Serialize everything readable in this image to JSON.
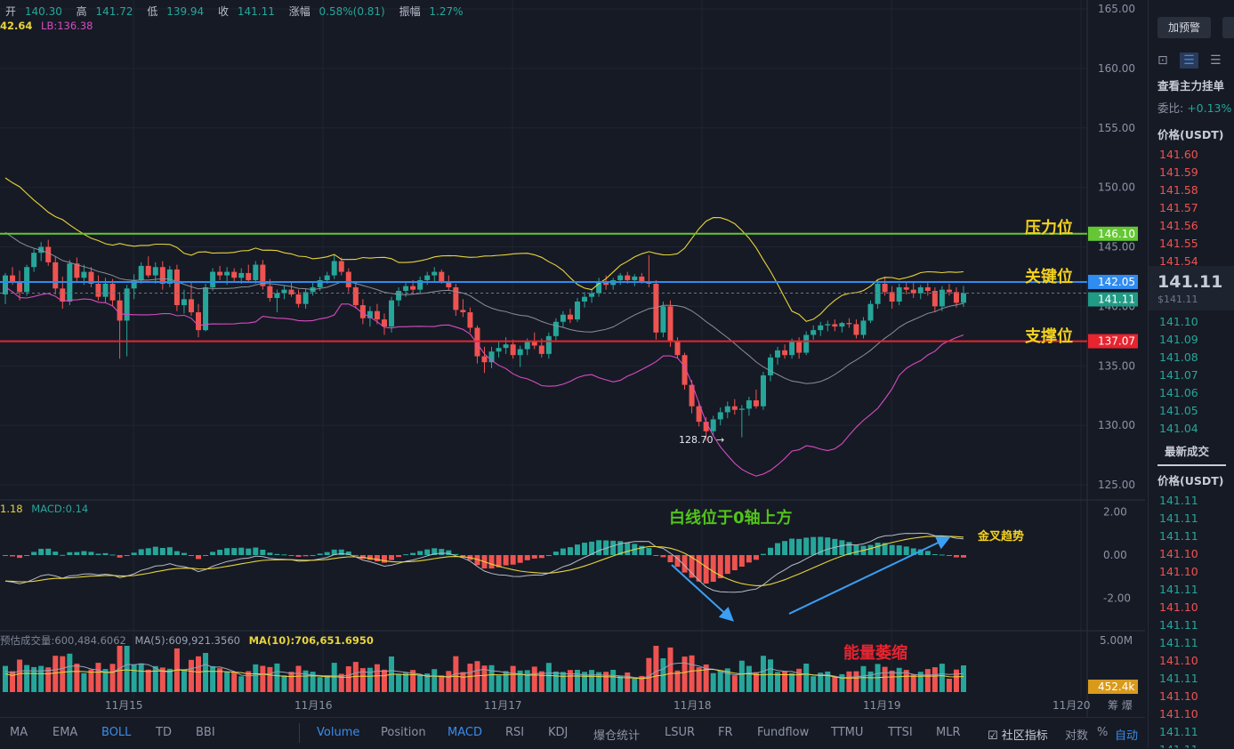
{
  "ohlc": {
    "open_label": "开",
    "open": "140.30",
    "high_label": "高",
    "high": "141.72",
    "low_label": "低",
    "low": "139.94",
    "close_label": "收",
    "close": "141.11",
    "change_label": "涨幅",
    "change": "0.58%(0.81)",
    "amplitude_label": "振幅",
    "amplitude": "1.27%"
  },
  "boll": {
    "ub": "42.64",
    "lb": "LB:136.38"
  },
  "macd_legend": {
    "dif": "1.18",
    "macd": "MACD:0.14"
  },
  "volume_legend": {
    "vol": "预估成交量:600,484.6062",
    "ma5": "MA(5):609,921.3560",
    "ma10": "MA(10):706,651.6950"
  },
  "levels": {
    "resistance": {
      "label": "压力位",
      "price": "146.10",
      "color": "#65c733"
    },
    "key": {
      "label": "关键位",
      "price": "142.05",
      "color": "#2f8cf0"
    },
    "support": {
      "label": "支撑位",
      "price": "137.07",
      "color": "#e8242f"
    }
  },
  "current_price_tag": "141.11",
  "volume_tag": "452.4k",
  "low_marker": "128.70 →",
  "annotations": {
    "macd_above_zero": "白线位于0轴上方",
    "golden_cross": "金叉趋势",
    "volume_shrink": "能量萎缩"
  },
  "colors": {
    "up": "#26a69a",
    "down": "#ef5350",
    "boll_upper": "#e8d43a",
    "boll_mid": "#8c8f9a",
    "boll_lower": "#d64cc0",
    "bg": "#161a25"
  },
  "chart_data": {
    "type": "candlestick",
    "price_axis": {
      "min": 125,
      "max": 165,
      "ticks": [
        "165.00",
        "160.00",
        "155.00",
        "150.00",
        "145.00",
        "140.00",
        "135.00",
        "130.00",
        "125.00"
      ]
    },
    "macd_axis": {
      "ticks": [
        "2.00",
        "0.00",
        "-2.00"
      ]
    },
    "volume_axis": {
      "ticks": [
        "5.00M"
      ]
    },
    "time_ticks": [
      "11月15",
      "11月16",
      "11月17",
      "11月18",
      "11月19",
      "11月20"
    ],
    "candles": [
      [
        141.0,
        142.8,
        140.2,
        142.6
      ],
      [
        142.6,
        143.3,
        141.8,
        142.0
      ],
      [
        142.0,
        143.0,
        140.5,
        141.2
      ],
      [
        141.2,
        143.5,
        140.9,
        143.3
      ],
      [
        143.3,
        144.8,
        142.9,
        144.5
      ],
      [
        144.5,
        145.4,
        143.8,
        145.0
      ],
      [
        145.0,
        145.6,
        143.4,
        143.7
      ],
      [
        143.7,
        144.2,
        141.0,
        141.5
      ],
      [
        141.5,
        142.5,
        139.8,
        140.4
      ],
      [
        140.4,
        143.9,
        140.1,
        143.6
      ],
      [
        143.6,
        144.1,
        142.0,
        142.4
      ],
      [
        142.4,
        143.5,
        141.8,
        142.9
      ],
      [
        142.9,
        143.3,
        141.6,
        141.9
      ],
      [
        141.9,
        142.6,
        140.5,
        140.8
      ],
      [
        140.8,
        142.4,
        140.3,
        141.9
      ],
      [
        141.9,
        142.3,
        140.0,
        140.5
      ],
      [
        140.5,
        141.2,
        135.6,
        138.8
      ],
      [
        138.8,
        141.8,
        135.8,
        141.5
      ],
      [
        141.5,
        142.7,
        140.6,
        142.2
      ],
      [
        142.2,
        143.7,
        141.9,
        143.4
      ],
      [
        143.4,
        144.2,
        142.4,
        142.6
      ],
      [
        142.6,
        143.7,
        141.9,
        143.3
      ],
      [
        143.3,
        143.8,
        141.4,
        141.9
      ],
      [
        141.9,
        143.4,
        141.6,
        143.1
      ],
      [
        143.1,
        143.5,
        139.6,
        140.1
      ],
      [
        140.1,
        141.4,
        139.4,
        140.6
      ],
      [
        140.6,
        142.0,
        139.2,
        139.5
      ],
      [
        139.5,
        140.2,
        137.4,
        138.0
      ],
      [
        138.0,
        141.9,
        137.9,
        141.6
      ],
      [
        141.6,
        143.2,
        141.3,
        142.9
      ],
      [
        142.9,
        143.4,
        142.2,
        142.6
      ],
      [
        142.6,
        143.3,
        141.8,
        142.9
      ],
      [
        142.9,
        143.2,
        142.1,
        142.4
      ],
      [
        142.4,
        143.2,
        141.9,
        142.8
      ],
      [
        142.8,
        143.5,
        142.0,
        142.2
      ],
      [
        142.2,
        143.8,
        141.9,
        143.5
      ],
      [
        143.5,
        143.9,
        141.4,
        141.7
      ],
      [
        141.7,
        142.3,
        140.4,
        140.7
      ],
      [
        140.7,
        141.4,
        139.5,
        141.1
      ],
      [
        141.1,
        141.8,
        140.6,
        141.4
      ],
      [
        141.4,
        142.0,
        140.8,
        141.0
      ],
      [
        141.0,
        141.4,
        139.9,
        140.2
      ],
      [
        140.2,
        141.5,
        139.8,
        141.2
      ],
      [
        141.2,
        142.0,
        140.9,
        141.6
      ],
      [
        141.6,
        142.5,
        141.3,
        142.2
      ],
      [
        142.2,
        142.9,
        141.9,
        142.6
      ],
      [
        142.6,
        144.4,
        142.3,
        143.8
      ],
      [
        143.8,
        144.1,
        142.6,
        142.9
      ],
      [
        142.9,
        143.2,
        141.2,
        141.6
      ],
      [
        141.6,
        141.9,
        139.8,
        140.1
      ],
      [
        140.1,
        140.6,
        138.5,
        139.0
      ],
      [
        139.0,
        140.0,
        138.3,
        139.6
      ],
      [
        139.6,
        140.2,
        138.5,
        138.9
      ],
      [
        138.9,
        139.4,
        137.6,
        138.3
      ],
      [
        138.3,
        140.8,
        137.8,
        140.5
      ],
      [
        140.5,
        141.6,
        140.0,
        141.3
      ],
      [
        141.3,
        142.1,
        140.8,
        141.7
      ],
      [
        141.7,
        142.2,
        141.0,
        141.4
      ],
      [
        141.4,
        142.5,
        141.1,
        142.2
      ],
      [
        142.2,
        142.9,
        141.8,
        142.6
      ],
      [
        142.6,
        143.3,
        142.1,
        142.9
      ],
      [
        142.9,
        143.1,
        141.9,
        142.1
      ],
      [
        142.1,
        142.6,
        141.3,
        141.6
      ],
      [
        141.6,
        141.9,
        139.2,
        139.7
      ],
      [
        139.7,
        140.6,
        139.1,
        139.5
      ],
      [
        139.5,
        139.9,
        137.8,
        138.2
      ],
      [
        138.2,
        138.4,
        135.2,
        135.8
      ],
      [
        135.8,
        136.6,
        134.4,
        135.3
      ],
      [
        135.3,
        136.6,
        134.8,
        136.2
      ],
      [
        136.2,
        137.0,
        135.7,
        136.5
      ],
      [
        136.5,
        137.4,
        136.0,
        136.8
      ],
      [
        136.8,
        137.2,
        135.6,
        135.9
      ],
      [
        135.9,
        136.7,
        134.9,
        136.4
      ],
      [
        136.4,
        137.3,
        135.9,
        137.0
      ],
      [
        137.0,
        137.8,
        136.4,
        136.7
      ],
      [
        136.7,
        137.3,
        135.7,
        136.0
      ],
      [
        136.0,
        137.8,
        135.6,
        137.5
      ],
      [
        137.5,
        139.0,
        137.1,
        138.7
      ],
      [
        138.7,
        139.6,
        138.2,
        139.3
      ],
      [
        139.3,
        139.8,
        138.6,
        138.9
      ],
      [
        138.9,
        140.7,
        138.7,
        140.4
      ],
      [
        140.4,
        141.2,
        139.9,
        140.8
      ],
      [
        140.8,
        141.4,
        140.3,
        141.1
      ],
      [
        141.1,
        142.4,
        140.8,
        142.1
      ],
      [
        142.1,
        142.6,
        141.4,
        141.8
      ],
      [
        141.8,
        142.4,
        141.4,
        142.2
      ],
      [
        142.2,
        142.8,
        141.8,
        142.6
      ],
      [
        142.6,
        142.9,
        141.9,
        142.2
      ],
      [
        142.2,
        142.7,
        141.7,
        142.5
      ],
      [
        142.5,
        142.8,
        141.9,
        142.1
      ],
      [
        142.1,
        144.3,
        141.6,
        141.9
      ],
      [
        141.9,
        142.2,
        137.2,
        137.8
      ],
      [
        137.8,
        140.4,
        137.4,
        140.0
      ],
      [
        140.0,
        140.5,
        136.6,
        137.1
      ],
      [
        137.1,
        137.4,
        135.6,
        135.9
      ],
      [
        135.9,
        136.1,
        133.0,
        133.4
      ],
      [
        133.4,
        133.8,
        131.0,
        131.6
      ],
      [
        131.6,
        132.0,
        129.9,
        130.3
      ],
      [
        130.3,
        130.7,
        128.7,
        129.5
      ],
      [
        129.5,
        130.8,
        129.1,
        130.5
      ],
      [
        130.5,
        131.5,
        130.0,
        131.1
      ],
      [
        131.1,
        132.0,
        130.6,
        131.6
      ],
      [
        131.6,
        132.2,
        130.9,
        131.3
      ],
      [
        131.3,
        131.7,
        129.0,
        131.4
      ],
      [
        131.4,
        132.4,
        130.8,
        132.1
      ],
      [
        132.1,
        133.0,
        131.4,
        131.6
      ],
      [
        131.6,
        134.5,
        131.3,
        134.2
      ],
      [
        134.2,
        136.0,
        133.7,
        135.7
      ],
      [
        135.7,
        136.6,
        135.1,
        136.3
      ],
      [
        136.3,
        136.8,
        135.6,
        135.9
      ],
      [
        135.9,
        137.3,
        135.6,
        137.0
      ],
      [
        137.0,
        137.4,
        135.6,
        136.1
      ],
      [
        136.1,
        137.9,
        135.9,
        137.6
      ],
      [
        137.6,
        138.4,
        137.2,
        138.0
      ],
      [
        138.0,
        138.7,
        137.5,
        138.4
      ],
      [
        138.4,
        138.8,
        137.9,
        138.5
      ],
      [
        138.5,
        138.9,
        137.9,
        138.3
      ],
      [
        138.3,
        138.7,
        137.8,
        138.6
      ],
      [
        138.6,
        139.0,
        138.2,
        138.5
      ],
      [
        138.5,
        138.9,
        137.3,
        137.6
      ],
      [
        137.6,
        139.1,
        137.3,
        138.8
      ],
      [
        138.8,
        140.5,
        138.6,
        140.2
      ],
      [
        140.2,
        142.2,
        139.8,
        141.9
      ],
      [
        141.9,
        142.5,
        140.9,
        141.2
      ],
      [
        141.2,
        141.7,
        139.8,
        140.4
      ],
      [
        140.4,
        141.9,
        140.1,
        141.6
      ],
      [
        141.6,
        142.1,
        141.0,
        141.4
      ],
      [
        141.4,
        142.0,
        140.7,
        141.1
      ],
      [
        141.1,
        141.8,
        140.6,
        141.6
      ],
      [
        141.6,
        142.0,
        140.9,
        141.3
      ],
      [
        141.3,
        141.6,
        139.5,
        140.0
      ],
      [
        140.0,
        141.7,
        139.6,
        141.4
      ],
      [
        141.4,
        141.9,
        140.9,
        141.2
      ],
      [
        141.2,
        141.6,
        139.9,
        140.3
      ],
      [
        140.3,
        141.72,
        139.94,
        141.11
      ]
    ]
  }
}
